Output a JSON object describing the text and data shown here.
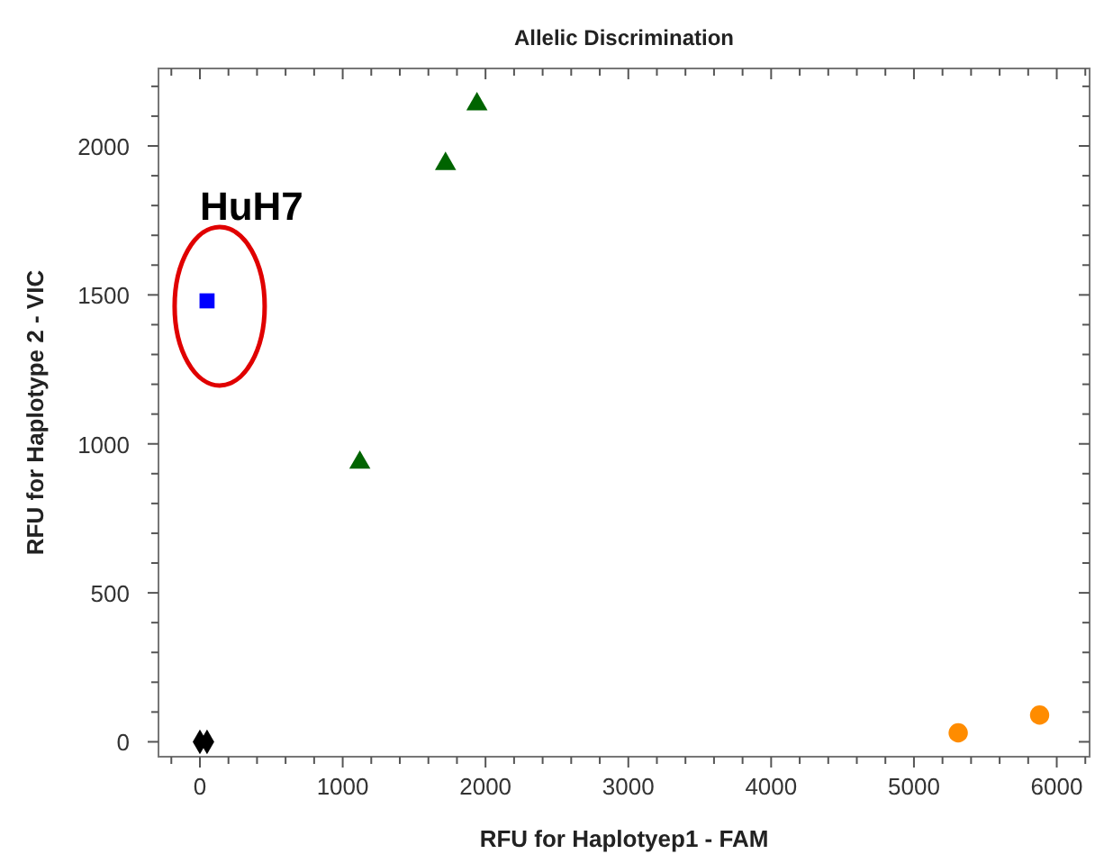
{
  "chart_data": {
    "type": "scatter",
    "title": "Allelic Discrimination",
    "xlabel": "RFU for Haplotyep1 - FAM",
    "ylabel": "RFU for Haplotype 2 - VIC",
    "xlim": [
      -290,
      6230
    ],
    "ylim": [
      -50,
      2260
    ],
    "xticks": [
      {
        "value": -200,
        "label": null
      },
      0,
      {
        "value": 200,
        "label": null
      },
      {
        "value": 400,
        "label": null
      },
      {
        "value": 600,
        "label": null
      },
      {
        "value": 800,
        "label": null
      },
      1000,
      {
        "value": 1200,
        "label": null
      },
      {
        "value": 1400,
        "label": null
      },
      {
        "value": 1600,
        "label": null
      },
      {
        "value": 1800,
        "label": null
      },
      2000,
      {
        "value": 2200,
        "label": null
      },
      {
        "value": 2400,
        "label": null
      },
      {
        "value": 2600,
        "label": null
      },
      {
        "value": 2800,
        "label": null
      },
      3000,
      {
        "value": 3200,
        "label": null
      },
      {
        "value": 3400,
        "label": null
      },
      {
        "value": 3600,
        "label": null
      },
      {
        "value": 3800,
        "label": null
      },
      4000,
      {
        "value": 4200,
        "label": null
      },
      {
        "value": 4400,
        "label": null
      },
      {
        "value": 4600,
        "label": null
      },
      {
        "value": 4800,
        "label": null
      },
      5000,
      {
        "value": 5200,
        "label": null
      },
      {
        "value": 5400,
        "label": null
      },
      {
        "value": 5600,
        "label": null
      },
      {
        "value": 5800,
        "label": null
      },
      6000,
      {
        "value": 6200,
        "label": null
      }
    ],
    "yticks": [
      0,
      {
        "value": 100,
        "label": null
      },
      {
        "value": 200,
        "label": null
      },
      {
        "value": 300,
        "label": null
      },
      {
        "value": 400,
        "label": null
      },
      500,
      {
        "value": 600,
        "label": null
      },
      {
        "value": 700,
        "label": null
      },
      {
        "value": 800,
        "label": null
      },
      {
        "value": 900,
        "label": null
      },
      1000,
      {
        "value": 1100,
        "label": null
      },
      {
        "value": 1200,
        "label": null
      },
      {
        "value": 1300,
        "label": null
      },
      {
        "value": 1400,
        "label": null
      },
      1500,
      {
        "value": 1600,
        "label": null
      },
      {
        "value": 1700,
        "label": null
      },
      {
        "value": 1800,
        "label": null
      },
      {
        "value": 1900,
        "label": null
      },
      2000,
      {
        "value": 2100,
        "label": null
      },
      {
        "value": 2200,
        "label": null
      }
    ],
    "grid": false,
    "series": [
      {
        "color": "#0000ff",
        "marker": "square",
        "x": [
          50
        ],
        "values": [
          1480
        ]
      },
      {
        "color": "#006400",
        "marker": "triangle",
        "x": [
          1120,
          1720,
          1940
        ],
        "values": [
          937,
          1940,
          2140
        ]
      },
      {
        "color": "#000000",
        "marker": "diamond",
        "x": [
          0,
          50
        ],
        "values": [
          0,
          0
        ]
      },
      {
        "color": "#ff8c00",
        "marker": "circle",
        "x": [
          5310,
          5880
        ],
        "values": [
          30,
          90
        ]
      }
    ],
    "annotations": [
      {
        "text": "HuH7",
        "x": 50,
        "y": 1480
      }
    ]
  }
}
